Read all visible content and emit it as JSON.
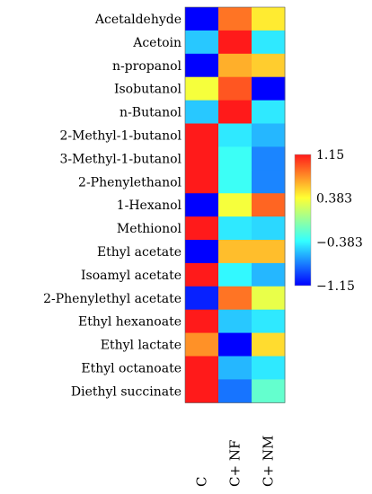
{
  "chart_data": {
    "type": "heatmap",
    "rows": [
      "Acetaldehyde",
      "Acetoin",
      "n-propanol",
      "Isobutanol",
      "n-Butanol",
      "2-Methyl-1-butanol",
      "3-Methyl-1-butanol",
      "2-Phenylethanol",
      "1-Hexanol",
      "Methionol",
      "Ethyl acetate",
      "Isoamyl acetate",
      "2-Phenylethyl acetate",
      "Ethyl hexanoate",
      "Ethyl lactate",
      "Ethyl octanoate",
      "Diethyl succinate"
    ],
    "columns": [
      "C",
      "C+ NF",
      "C+ NM"
    ],
    "values": [
      [
        -1.15,
        0.85,
        0.45
      ],
      [
        -0.55,
        1.15,
        -0.45
      ],
      [
        -1.15,
        0.65,
        0.55
      ],
      [
        0.35,
        0.95,
        -1.15
      ],
      [
        -0.55,
        1.15,
        -0.45
      ],
      [
        1.15,
        -0.45,
        -0.6
      ],
      [
        1.15,
        -0.35,
        -0.75
      ],
      [
        1.15,
        -0.35,
        -0.75
      ],
      [
        -1.15,
        0.35,
        0.9
      ],
      [
        1.15,
        -0.45,
        -0.5
      ],
      [
        -1.15,
        0.6,
        0.6
      ],
      [
        1.15,
        -0.4,
        -0.6
      ],
      [
        -1.05,
        0.85,
        0.3
      ],
      [
        1.15,
        -0.55,
        -0.45
      ],
      [
        0.75,
        -1.15,
        0.5
      ],
      [
        1.15,
        -0.6,
        -0.45
      ],
      [
        1.15,
        -0.8,
        -0.2
      ]
    ],
    "colorbar": {
      "min": -1.15,
      "max": 1.15,
      "ticks": [
        "1.15",
        "0.383",
        "−0.383",
        "−1.15"
      ],
      "colors": [
        "#ff1a1a",
        "#ffff33",
        "#33ffff",
        "#0000ff"
      ]
    },
    "grid": false,
    "legend_placement": "right"
  }
}
